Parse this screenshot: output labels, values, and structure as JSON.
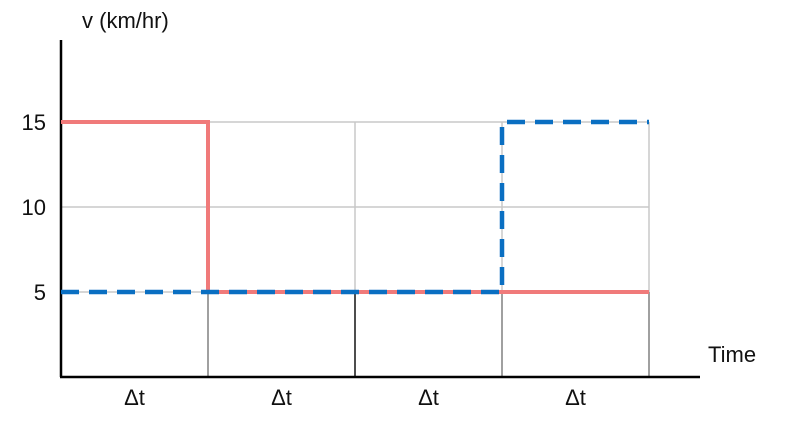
{
  "chart_data": {
    "type": "line",
    "xlabel": "Time",
    "ylabel": "v (km/hr)",
    "y_ticks": [
      5,
      10,
      15
    ],
    "y_tick_labels": [
      "5",
      "10",
      "15"
    ],
    "ylim": [
      0,
      20
    ],
    "x_interval_labels": [
      "Δt",
      "Δt",
      "Δt",
      "Δt"
    ],
    "xlim": [
      0,
      4.5
    ],
    "grid": true,
    "legend": "none",
    "series": [
      {
        "style": "solid",
        "color": "#f07a7a",
        "points": [
          [
            0,
            15
          ],
          [
            1,
            15
          ],
          [
            1,
            5
          ],
          [
            4,
            5
          ]
        ]
      },
      {
        "style": "dashed",
        "color": "#0a6fc2",
        "points": [
          [
            0,
            5
          ],
          [
            3,
            5
          ],
          [
            3,
            15
          ],
          [
            4,
            15
          ]
        ]
      }
    ]
  }
}
